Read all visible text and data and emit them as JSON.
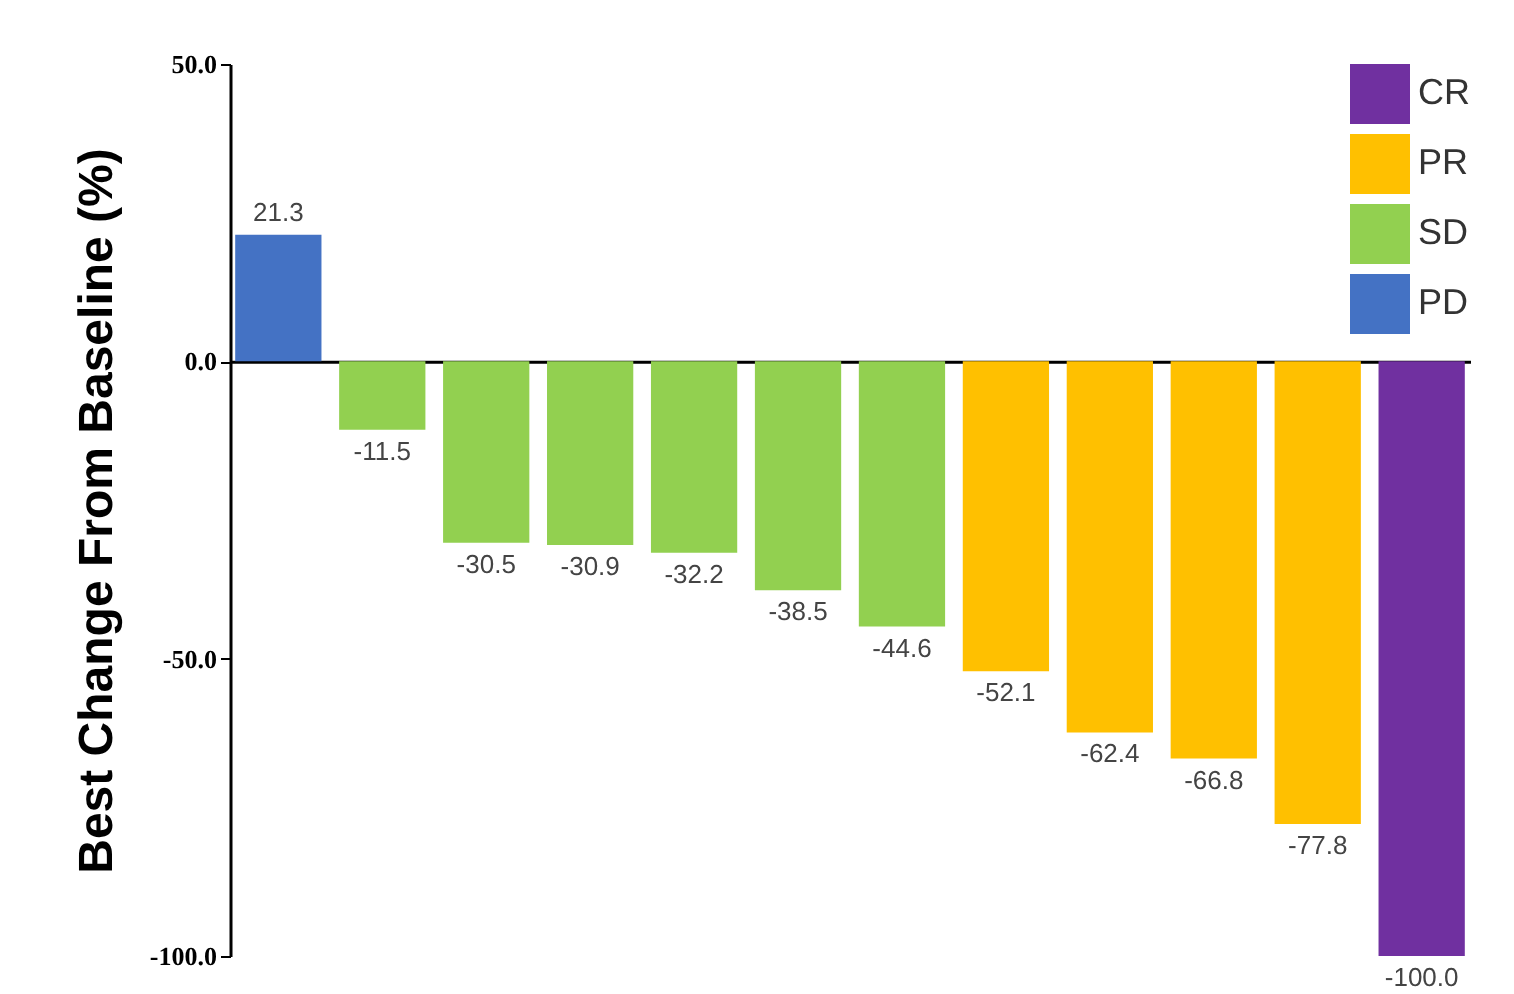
{
  "chart_data": {
    "type": "bar",
    "ylabel": "Best Change From Baseline (%)",
    "categories": [
      null,
      null,
      null,
      null,
      null,
      null,
      null,
      null,
      null,
      null,
      null,
      null
    ],
    "series": [
      {
        "name": "CR",
        "color": "#7030a0",
        "values": [
          null,
          null,
          null,
          null,
          null,
          null,
          null,
          null,
          null,
          null,
          null,
          -100
        ],
        "value_labels": [
          null,
          null,
          null,
          null,
          null,
          null,
          null,
          null,
          null,
          null,
          null,
          "-100.0"
        ]
      },
      {
        "name": "PR",
        "color": "#ffc000",
        "values": [
          null,
          null,
          null,
          null,
          null,
          null,
          null,
          -52.1,
          -62.4,
          -66.8,
          -77.8,
          null
        ],
        "value_labels": [
          null,
          null,
          null,
          null,
          null,
          null,
          null,
          "-52.1",
          "-62.4",
          "-66.8",
          "-77.8",
          null
        ]
      },
      {
        "name": "SD",
        "color": "#92d050",
        "values": [
          null,
          -11.5,
          -30.5,
          -30.9,
          -32.2,
          -38.5,
          -44.6,
          null,
          null,
          null,
          null,
          null
        ],
        "value_labels": [
          null,
          "-11.5",
          "-30.5",
          "-30.9",
          "-32.2",
          "-38.5",
          "-44.6",
          null,
          null,
          null,
          null,
          null
        ]
      },
      {
        "name": "PD",
        "color": "#4472c4",
        "values": [
          21.3,
          null,
          null,
          null,
          null,
          null,
          null,
          null,
          null,
          null,
          null,
          null
        ],
        "value_labels": [
          "21.3",
          null,
          null,
          null,
          null,
          null,
          null,
          null,
          null,
          null,
          null,
          null
        ]
      }
    ],
    "ylim": [
      -100,
      50
    ],
    "yticks": [
      {
        "value": 50,
        "label": "50.0"
      },
      {
        "value": 0,
        "label": "0.0"
      },
      {
        "value": -50,
        "label": "-50.0"
      },
      {
        "value": -100,
        "label": "-100.0"
      }
    ],
    "legend": "top right",
    "tick_labels": "y"
  }
}
